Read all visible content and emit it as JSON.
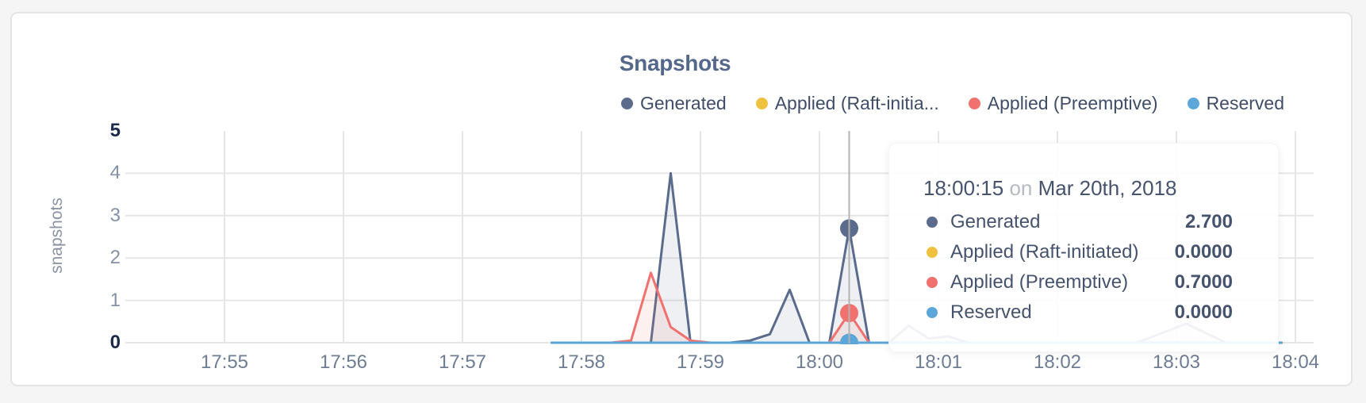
{
  "card": {
    "background": "#ffffff",
    "page_background": "#f5f5f6"
  },
  "chart_data": {
    "type": "area",
    "title": "Snapshots",
    "xlabel": "",
    "ylabel": "snapshots",
    "ylim": [
      0,
      5
    ],
    "x_axis_note": "time of day, one tick per minute",
    "x_ticks": [
      {
        "label": "17:55",
        "s": -300
      },
      {
        "label": "17:56",
        "s": -240
      },
      {
        "label": "17:57",
        "s": -180
      },
      {
        "label": "17:58",
        "s": -120
      },
      {
        "label": "17:59",
        "s": -60
      },
      {
        "label": "18:00",
        "s": 0
      },
      {
        "label": "18:01",
        "s": 60
      },
      {
        "label": "18:02",
        "s": 120
      },
      {
        "label": "18:03",
        "s": 180
      },
      {
        "label": "18:04",
        "s": 240
      }
    ],
    "y_ticks": [
      {
        "label": "0",
        "v": 0,
        "strong": true
      },
      {
        "label": "1",
        "v": 1,
        "strong": false
      },
      {
        "label": "2",
        "v": 2,
        "strong": false
      },
      {
        "label": "3",
        "v": 3,
        "strong": false
      },
      {
        "label": "4",
        "v": 4,
        "strong": false
      },
      {
        "label": "5",
        "v": 5,
        "strong": true
      }
    ],
    "series": [
      {
        "name": "Generated",
        "color": "#5a6b8c",
        "points": [
          [
            -135,
            0
          ],
          [
            -95,
            0
          ],
          [
            -85,
            0
          ],
          [
            -75,
            4.0
          ],
          [
            -65,
            0
          ],
          [
            -45,
            0
          ],
          [
            -35,
            0.05
          ],
          [
            -25,
            0.2
          ],
          [
            -15,
            1.25
          ],
          [
            -5,
            0
          ],
          [
            5,
            0
          ],
          [
            15,
            2.7
          ],
          [
            25,
            0
          ],
          [
            35,
            0
          ],
          [
            45,
            0.4
          ],
          [
            55,
            0.1
          ],
          [
            65,
            0.15
          ],
          [
            75,
            0
          ],
          [
            160,
            0
          ],
          [
            185,
            0.45
          ],
          [
            205,
            0
          ],
          [
            233,
            0
          ]
        ]
      },
      {
        "name": "Applied (Raft-initiated)",
        "color": "#eec23e",
        "points": [
          [
            -135,
            0
          ],
          [
            233,
            0
          ]
        ]
      },
      {
        "name": "Applied (Preemptive)",
        "color": "#f0716e",
        "points": [
          [
            -135,
            0
          ],
          [
            -105,
            0
          ],
          [
            -95,
            0.05
          ],
          [
            -85,
            1.65
          ],
          [
            -75,
            0.37
          ],
          [
            -65,
            0.05
          ],
          [
            -55,
            0
          ],
          [
            5,
            0
          ],
          [
            15,
            0.7
          ],
          [
            25,
            0
          ],
          [
            233,
            0
          ]
        ]
      },
      {
        "name": "Reserved",
        "color": "#5ba7d9",
        "points": [
          [
            -135,
            0
          ],
          [
            233,
            0
          ]
        ]
      }
    ],
    "highlight": {
      "time_s": 15,
      "time_label": "18:00:15",
      "values": [
        2.7,
        0.0,
        0.7,
        0.0
      ]
    },
    "grid": "on",
    "legend_position": "top-right"
  },
  "legend": {
    "items": [
      {
        "label": "Generated",
        "color": "#5a6b8c"
      },
      {
        "label": "Applied (Raft-initia...",
        "color": "#eec23e"
      },
      {
        "label": "Applied (Preemptive)",
        "color": "#f0716e"
      },
      {
        "label": "Reserved",
        "color": "#5ba7d9"
      }
    ]
  },
  "tooltip": {
    "time": "18:00:15",
    "on_word": "on",
    "date": "Mar 20th, 2018",
    "rows": [
      {
        "label": "Generated",
        "value": "2.700",
        "color": "#5a6b8c"
      },
      {
        "label": "Applied (Raft-initiated)",
        "value": "0.0000",
        "color": "#eec23e"
      },
      {
        "label": "Applied (Preemptive)",
        "value": "0.7000",
        "color": "#f0716e"
      },
      {
        "label": "Reserved",
        "value": "0.0000",
        "color": "#5ba7d9"
      }
    ]
  },
  "colors": {
    "gridline": "#e6e6e6",
    "crosshair": "#b3b3b3",
    "axis_text": "#6e7d93",
    "axis_text_strong": "#1b2a4a"
  }
}
